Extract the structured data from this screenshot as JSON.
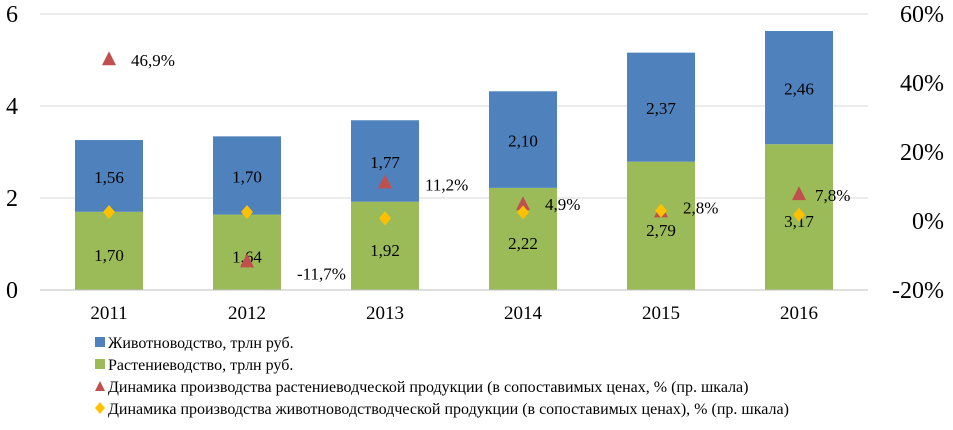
{
  "chart_data": {
    "type": "bar",
    "stacked": true,
    "categories": [
      "2011",
      "2012",
      "2013",
      "2014",
      "2015",
      "2016"
    ],
    "series": [
      {
        "name": "Растениеводство, трлн руб.",
        "color": "#9BBB59",
        "values": [
          1.7,
          1.64,
          1.92,
          2.22,
          2.79,
          3.17
        ],
        "labels": [
          "1,70",
          "1,64",
          "1,92",
          "2,22",
          "2,79",
          "3,17"
        ]
      },
      {
        "name": "Животноводство, трлн руб.",
        "color": "#4F81BD",
        "values": [
          1.56,
          1.7,
          1.77,
          2.1,
          2.37,
          2.46
        ],
        "labels": [
          "1,56",
          "1,70",
          "1,77",
          "2,10",
          "2,37",
          "2,46"
        ]
      }
    ],
    "secondary_series": [
      {
        "name": "Динамика производства растениеводческой продукции (в сопоставимых ценах, % (пр. шкала)",
        "marker": "triangle",
        "color": "#C0504D",
        "values": [
          46.9,
          -11.7,
          11.2,
          4.9,
          2.8,
          7.8
        ],
        "labels": [
          "46,9%",
          "-11,7%",
          "11,2%",
          "4,9%",
          "2,8%",
          "7,8%"
        ]
      },
      {
        "name": "Динамика производства животноводстводческой продукции (в сопоставимых ценах), % (пр. шкала)",
        "marker": "diamond",
        "color": "#FFC000",
        "values": [
          2.6,
          2.6,
          0.8,
          2.5,
          3.0,
          1.8
        ]
      }
    ],
    "y_left": {
      "min": 0,
      "max": 6,
      "ticks": [
        0,
        2,
        4,
        6
      ],
      "tick_labels": [
        "0",
        "2",
        "4",
        "6"
      ]
    },
    "y_right": {
      "min": -20,
      "max": 60,
      "ticks": [
        -20,
        0,
        20,
        40,
        60
      ],
      "tick_labels": [
        "-20%",
        "0%",
        "20%",
        "40%",
        "60%"
      ]
    },
    "grid": true,
    "legend_position": "bottom-left"
  }
}
